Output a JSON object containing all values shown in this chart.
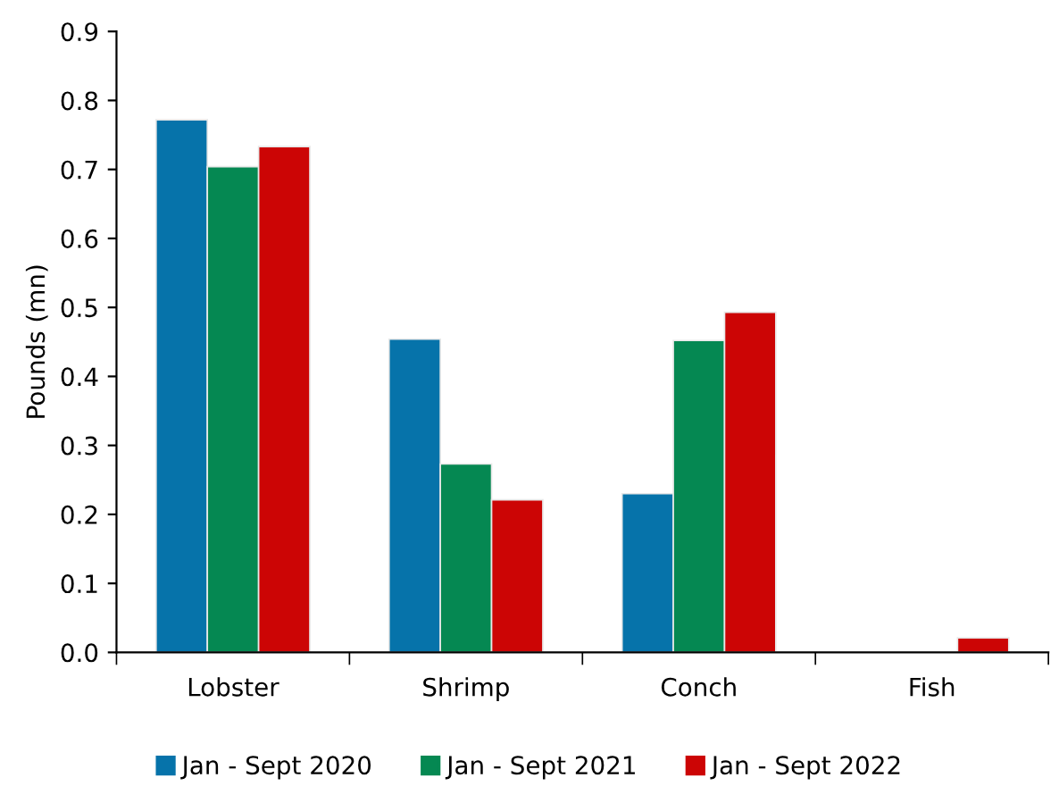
{
  "chart_data": {
    "type": "bar",
    "ylabel": "Pounds (mn)",
    "categories": [
      "Lobster",
      "Shrimp",
      "Conch",
      "Fish"
    ],
    "series": [
      {
        "name": "Jan - Sept 2020",
        "color": "#0673aa",
        "values": [
          0.772,
          0.454,
          0.23,
          null
        ]
      },
      {
        "name": "Jan - Sept 2021",
        "color": "#058852",
        "values": [
          0.704,
          0.273,
          0.452,
          null
        ]
      },
      {
        "name": "Jan - Sept 2022",
        "color": "#cc0505",
        "values": [
          0.733,
          0.221,
          0.493,
          0.021
        ]
      }
    ],
    "ylim": [
      0,
      0.9
    ],
    "yticks": [
      {
        "value": 0,
        "label": "0.0"
      },
      0.1,
      0.2,
      0.3,
      0.4,
      0.5,
      0.6,
      0.7,
      0.8,
      0.9
    ],
    "grid": false,
    "legend": "bottom"
  }
}
